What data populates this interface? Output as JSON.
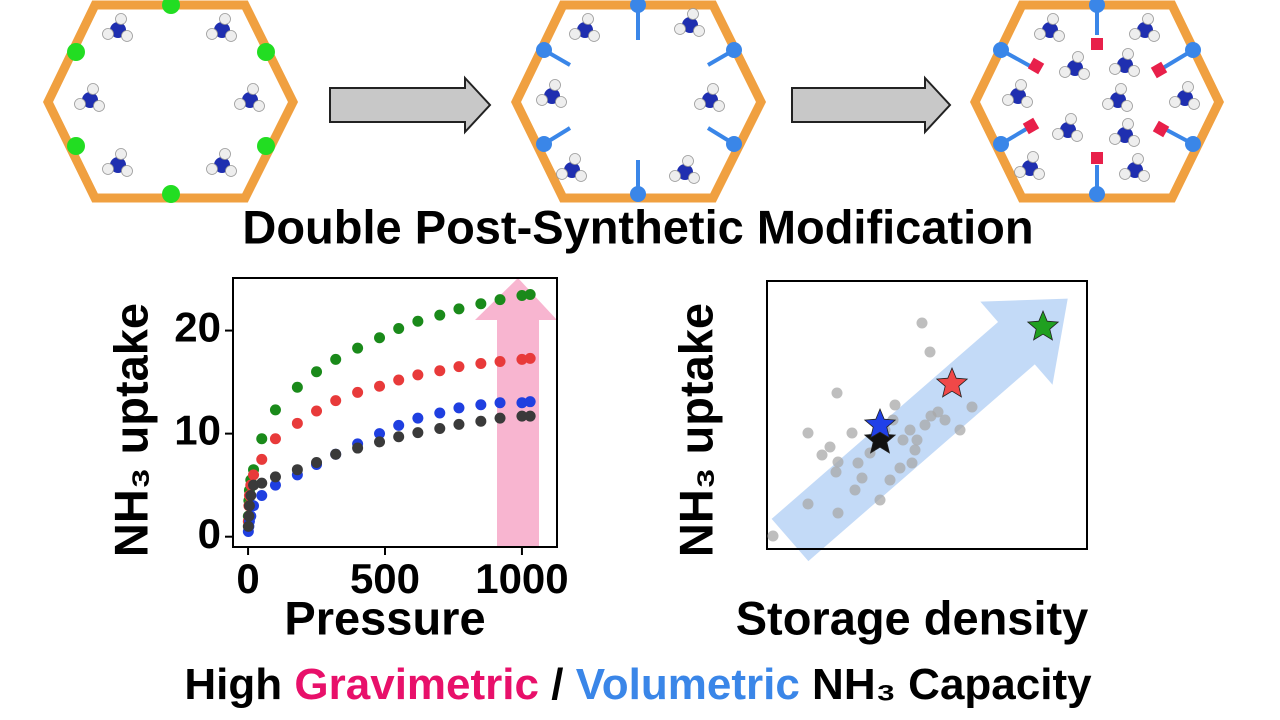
{
  "title": "Double Post-Synthetic Modification",
  "footer": {
    "high": "High",
    "gravimetric": "Gravimetric",
    "slash": "/",
    "volumetric": "Volumetric",
    "rest": "NH₃ Capacity"
  },
  "chart_data": [
    {
      "type": "scatter",
      "xlabel": "Pressure",
      "ylabel": "NH₃ uptake",
      "xlim": [
        -55,
        1128
      ],
      "ylim": [
        -1,
        25.1
      ],
      "xticks": [
        0,
        500,
        1000
      ],
      "yticks": [
        0,
        10,
        20
      ],
      "x": [
        1,
        3,
        5,
        10,
        20,
        50,
        100,
        180,
        250,
        320,
        400,
        480,
        550,
        620,
        700,
        770,
        850,
        920,
        1000,
        1030
      ],
      "series": [
        {
          "color": "#1a8a1a",
          "values": [
            2,
            3.5,
            4.5,
            5.5,
            6.5,
            9.5,
            12.3,
            14.5,
            16,
            17.2,
            18.3,
            19.3,
            20.2,
            20.9,
            21.5,
            22.1,
            22.6,
            23,
            23.4,
            23.5
          ]
        },
        {
          "color": "#e83a3a",
          "values": [
            1.5,
            3,
            4,
            5,
            6,
            7.5,
            9.5,
            11,
            12.2,
            13.2,
            14,
            14.6,
            15.2,
            15.7,
            16.1,
            16.5,
            16.8,
            17,
            17.2,
            17.3
          ]
        },
        {
          "color": "#1f3fe0",
          "values": [
            0.5,
            1,
            1.5,
            2,
            3,
            4,
            5,
            6,
            7,
            8,
            9,
            10,
            10.8,
            11.5,
            12,
            12.5,
            12.8,
            13,
            13,
            13.1
          ]
        },
        {
          "color": "#3a3a3a",
          "values": [
            1,
            2,
            3,
            4,
            5,
            5.2,
            5.8,
            6.5,
            7.2,
            8,
            8.6,
            9.2,
            9.7,
            10.1,
            10.5,
            10.9,
            11.2,
            11.5,
            11.7,
            11.7
          ]
        }
      ]
    },
    {
      "type": "scatter",
      "xlabel": "Storage density",
      "ylabel": "NH₃ uptake",
      "xlim": [
        0,
        320
      ],
      "ylim": [
        0,
        268
      ],
      "series": [
        {
          "color": "#a8a8a8",
          "marker": "circle",
          "x": [
            6,
            70,
            41,
            63,
            55,
            69,
            71,
            85,
            91,
            95,
            103,
            118,
            126,
            128,
            136,
            143,
            150,
            158,
            164,
            163,
            155,
            133,
            145,
            148,
            171,
            178,
            205,
            41,
            71,
            88,
            113,
            123,
            193
          ],
          "values": [
            13,
            156,
            116,
            102,
            94,
            77,
            87,
            116,
            86,
            71,
            96,
            119,
            129,
            144,
            109,
            119,
            109,
            124,
            133,
            197,
            226,
            81,
            86,
            99,
            137,
            129,
            142,
            45,
            36,
            59,
            49,
            69,
            119
          ]
        },
        {
          "color": "#111111",
          "marker": "star",
          "x": [
            113
          ],
          "values": [
            109
          ]
        },
        {
          "color": "#2040e8",
          "marker": "star",
          "x": [
            113
          ],
          "values": [
            124
          ]
        },
        {
          "color": "#f04848",
          "marker": "star",
          "x": [
            185
          ],
          "values": [
            165
          ]
        },
        {
          "color": "#20a020",
          "marker": "star",
          "x": [
            276
          ],
          "values": [
            222
          ]
        }
      ]
    }
  ]
}
